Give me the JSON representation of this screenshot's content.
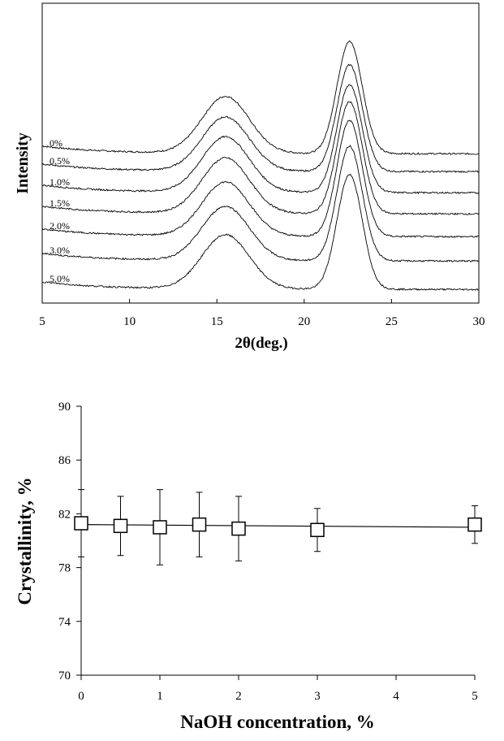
{
  "chart_data": [
    {
      "type": "line",
      "xlabel": "2θ(deg.)",
      "ylabel": "Intensity",
      "xlim": [
        5,
        30
      ],
      "x_ticks": [
        "5",
        "10",
        "15",
        "20",
        "25",
        "30"
      ],
      "y_ticks_shown": false,
      "grid": false,
      "legend": "inline labels at left",
      "peaks_2theta": [
        15.5,
        22.6
      ],
      "series": [
        {
          "name": "0%",
          "baseline": 0.0,
          "peak1_height": 0.42,
          "peak2_height": 0.83
        },
        {
          "name": "0.5%",
          "baseline": 0.0,
          "peak1_height": 0.4,
          "peak2_height": 0.79
        },
        {
          "name": "1.0%",
          "baseline": 0.0,
          "peak1_height": 0.41,
          "peak2_height": 0.8
        },
        {
          "name": "1.5%",
          "baseline": 0.0,
          "peak1_height": 0.41,
          "peak2_height": 0.83
        },
        {
          "name": "2.0%",
          "baseline": 0.0,
          "peak1_height": 0.4,
          "peak2_height": 0.86
        },
        {
          "name": "3.0%",
          "baseline": 0.0,
          "peak1_height": 0.4,
          "peak2_height": 0.85
        },
        {
          "name": "5.0%",
          "baseline": 0.0,
          "peak1_height": 0.4,
          "peak2_height": 0.85
        }
      ]
    },
    {
      "type": "scatter",
      "xlabel": "NaOH concentration, %",
      "ylabel": "Crystallinity, %",
      "xlim": [
        0,
        5
      ],
      "ylim": [
        70,
        90
      ],
      "x_ticks": [
        "0",
        "1",
        "2",
        "3",
        "4",
        "5"
      ],
      "y_ticks": [
        "70",
        "74",
        "78",
        "82",
        "86",
        "90"
      ],
      "grid": false,
      "marker": "open-square",
      "trendline": true,
      "trendline_values": [
        {
          "x": 0,
          "y": 81.2
        },
        {
          "x": 5,
          "y": 81.0
        }
      ],
      "points": [
        {
          "x": 0,
          "y": 81.3,
          "err": 2.5
        },
        {
          "x": 0.5,
          "y": 81.1,
          "err": 2.2
        },
        {
          "x": 1,
          "y": 81.0,
          "err": 2.8
        },
        {
          "x": 1.5,
          "y": 81.2,
          "err": 2.4
        },
        {
          "x": 2,
          "y": 80.9,
          "err": 2.4
        },
        {
          "x": 3,
          "y": 80.8,
          "err": 1.6
        },
        {
          "x": 5,
          "y": 81.2,
          "err": 1.4
        }
      ]
    }
  ]
}
